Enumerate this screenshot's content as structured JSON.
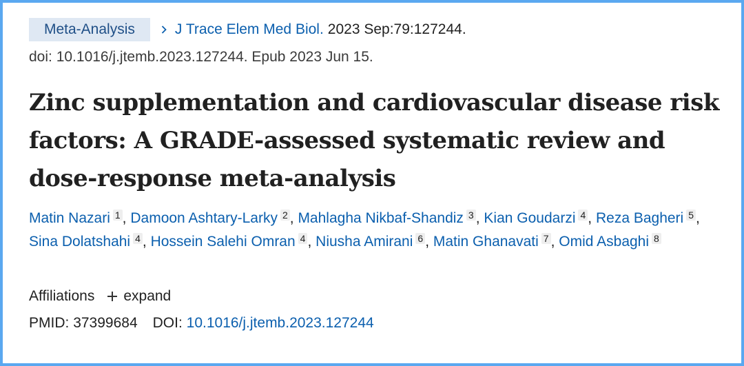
{
  "badge": "Meta-Analysis",
  "citation": {
    "journal": "J Trace Elem Med Biol.",
    "date_volume": "2023 Sep:79:127244.",
    "doi_line": "doi: 10.1016/j.jtemb.2023.127244. Epub 2023 Jun 15."
  },
  "title": "Zinc supplementation and cardiovascular disease risk factors: A GRADE-assessed systematic review and dose-response meta-analysis",
  "authors": [
    {
      "name": "Matin Nazari",
      "aff": "1"
    },
    {
      "name": "Damoon Ashtary-Larky",
      "aff": "2"
    },
    {
      "name": "Mahlagha Nikbaf-Shandiz",
      "aff": "3"
    },
    {
      "name": "Kian Goudarzi",
      "aff": "4"
    },
    {
      "name": "Reza Bagheri",
      "aff": "5"
    },
    {
      "name": "Sina Dolatshahi",
      "aff": "4"
    },
    {
      "name": "Hossein Salehi Omran",
      "aff": "4"
    },
    {
      "name": "Niusha Amirani",
      "aff": "6"
    },
    {
      "name": "Matin Ghanavati",
      "aff": "7"
    },
    {
      "name": "Omid Asbaghi",
      "aff": "8"
    }
  ],
  "affiliations": {
    "label": "Affiliations",
    "expand_label": "expand"
  },
  "ids": {
    "pmid_label": "PMID:",
    "pmid": "37399684",
    "doi_label": "DOI:",
    "doi": "10.1016/j.jtemb.2023.127244"
  },
  "colors": {
    "link": "#0b5fae",
    "badge_bg": "#dfe8f3",
    "frame": "#5aa8f0"
  },
  "icons": {
    "chevron": "chevron-right-icon",
    "expand": "plus-icon"
  }
}
